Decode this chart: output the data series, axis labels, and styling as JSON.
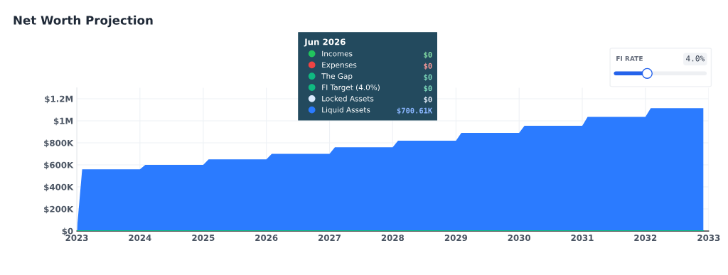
{
  "chart_data": {
    "type": "area",
    "title": "Net Worth Projection",
    "x": [
      "2023-01",
      "2023-02",
      "2024-01",
      "2024-02",
      "2025-01",
      "2025-02",
      "2026-01",
      "2026-02",
      "2027-01",
      "2027-02",
      "2028-01",
      "2028-02",
      "2029-01",
      "2029-02",
      "2030-01",
      "2030-02",
      "2031-01",
      "2031-02",
      "2032-01",
      "2032-02",
      "2032-12"
    ],
    "series": [
      {
        "name": "Incomes",
        "color": "#22c55e",
        "type": "line",
        "values": [
          null,
          null,
          null,
          null,
          null,
          null,
          null,
          null,
          null,
          null,
          null,
          null,
          null,
          null,
          null,
          null,
          null,
          null,
          null,
          null,
          null
        ]
      },
      {
        "name": "Expenses",
        "color": "#ef4444",
        "type": "line",
        "values": [
          null,
          null,
          null,
          null,
          null,
          null,
          null,
          null,
          null,
          null,
          null,
          null,
          null,
          null,
          null,
          null,
          null,
          null,
          null,
          null,
          null
        ]
      },
      {
        "name": "The Gap",
        "color": "#10b981",
        "type": "line",
        "values": [
          null,
          null,
          null,
          null,
          null,
          null,
          null,
          null,
          null,
          null,
          null,
          null,
          null,
          null,
          null,
          null,
          null,
          null,
          null,
          null,
          null
        ]
      },
      {
        "name": "FI Target (4.0%)",
        "color": "#10b981",
        "type": "line",
        "values": [
          0,
          0,
          0,
          0,
          0,
          0,
          0,
          0,
          0,
          0,
          0,
          0,
          0,
          0,
          0,
          0,
          0,
          0,
          0,
          0,
          0
        ]
      },
      {
        "name": "Locked Assets",
        "color": "#dbeafe",
        "type": "line",
        "values": [
          null,
          null,
          null,
          null,
          null,
          null,
          null,
          null,
          null,
          null,
          null,
          null,
          null,
          null,
          null,
          null,
          null,
          null,
          null,
          null,
          null
        ]
      },
      {
        "name": "Liquid Assets",
        "color": "#2b7bff",
        "values": [
          0,
          560000,
          560000,
          600000,
          600000,
          650000,
          650000,
          700000,
          700000,
          760000,
          760000,
          820000,
          820000,
          890000,
          890000,
          955000,
          955000,
          1035000,
          1035000,
          1115000,
          1115000
        ]
      }
    ],
    "xlim": [
      "2023",
      "2033"
    ],
    "xticks": [
      "2023",
      "2024",
      "2025",
      "2026",
      "2027",
      "2028",
      "2029",
      "2030",
      "2031",
      "2032",
      "2033"
    ],
    "ylim": [
      0,
      1300000
    ],
    "yticks": [
      {
        "value": 0,
        "label": "$0"
      },
      {
        "value": 200000,
        "label": "$200K"
      },
      {
        "value": 400000,
        "label": "$400K"
      },
      {
        "value": 600000,
        "label": "$600K"
      },
      {
        "value": 800000,
        "label": "$800K"
      },
      {
        "value": 1000000,
        "label": "$1M"
      },
      {
        "value": 1200000,
        "label": "$1.2M"
      }
    ],
    "grid": true,
    "legend": "top",
    "legend_title": "Jun 2026",
    "annotations": [
      "$0",
      "$0",
      "$0",
      "$0",
      "$0",
      "$700.61K",
      "FI RATE",
      "4.0%"
    ]
  }
}
